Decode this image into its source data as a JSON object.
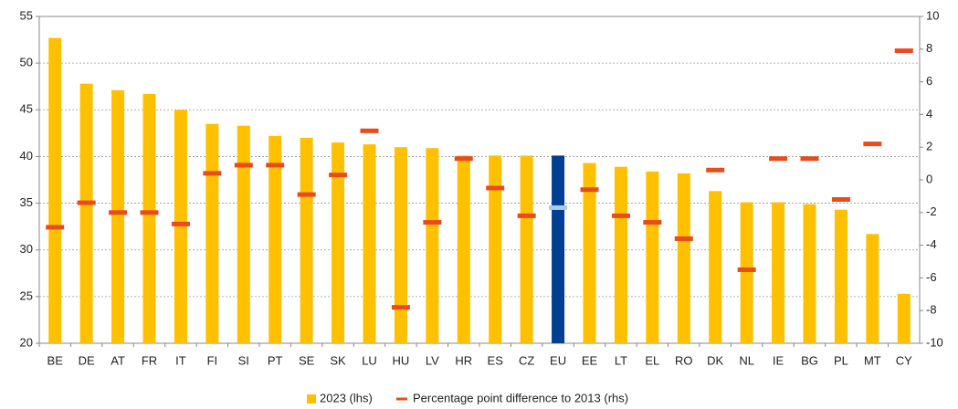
{
  "chart_data": {
    "type": "bar",
    "categories": [
      "BE",
      "DE",
      "AT",
      "FR",
      "IT",
      "FI",
      "SI",
      "PT",
      "SE",
      "SK",
      "LU",
      "HU",
      "LV",
      "HR",
      "ES",
      "CZ",
      "EU",
      "EE",
      "LT",
      "EL",
      "RO",
      "DK",
      "NL",
      "IE",
      "BG",
      "PL",
      "MT",
      "CY"
    ],
    "series": [
      {
        "name": "2023 (lhs)",
        "color": "#ffc000",
        "colors": [
          "#ffc000",
          "#ffc000",
          "#ffc000",
          "#ffc000",
          "#ffc000",
          "#ffc000",
          "#ffc000",
          "#ffc000",
          "#ffc000",
          "#ffc000",
          "#ffc000",
          "#ffc000",
          "#ffc000",
          "#ffc000",
          "#ffc000",
          "#ffc000",
          "#003f91",
          "#ffc000",
          "#ffc000",
          "#ffc000",
          "#ffc000",
          "#ffc000",
          "#ffc000",
          "#ffc000",
          "#ffc000",
          "#ffc000",
          "#ffc000",
          "#ffc000"
        ],
        "values": [
          52.7,
          47.8,
          47.1,
          46.7,
          45.0,
          43.5,
          43.3,
          42.2,
          42.0,
          41.5,
          41.3,
          41.0,
          40.9,
          40.1,
          40.1,
          40.1,
          40.1,
          39.3,
          38.9,
          38.4,
          38.2,
          36.3,
          35.1,
          35.1,
          34.9,
          34.3,
          31.7,
          25.3
        ]
      },
      {
        "name": "Percentage point difference to 2013 (rhs)",
        "color": "#ea4b1c",
        "axis": "y2",
        "marker": "dash",
        "colors": [
          "#ea4b1c",
          "#ea4b1c",
          "#ea4b1c",
          "#ea4b1c",
          "#ea4b1c",
          "#ea4b1c",
          "#ea4b1c",
          "#ea4b1c",
          "#ea4b1c",
          "#ea4b1c",
          "#ea4b1c",
          "#ea4b1c",
          "#ea4b1c",
          "#ea4b1c",
          "#ea4b1c",
          "#ea4b1c",
          "#a9cbef",
          "#ea4b1c",
          "#ea4b1c",
          "#ea4b1c",
          "#ea4b1c",
          "#ea4b1c",
          "#ea4b1c",
          "#ea4b1c",
          "#ea4b1c",
          "#ea4b1c",
          "#ea4b1c",
          "#ea4b1c"
        ],
        "values": [
          -2.9,
          -1.4,
          -2.0,
          -2.0,
          -2.7,
          0.4,
          0.9,
          0.9,
          -0.9,
          0.3,
          3.0,
          -7.8,
          -2.6,
          1.3,
          -0.5,
          -2.2,
          -1.7,
          -0.6,
          -2.2,
          -2.6,
          -3.6,
          0.6,
          -5.5,
          1.3,
          1.3,
          -1.2,
          2.2,
          7.9
        ]
      }
    ],
    "ylim": [
      20,
      55
    ],
    "yticks": [
      20,
      25,
      30,
      35,
      40,
      45,
      50,
      55
    ],
    "y2lim": [
      -10,
      10
    ],
    "y2ticks": [
      -10,
      -8,
      -6,
      -4,
      -2,
      0,
      2,
      4,
      6,
      8,
      10
    ],
    "grid": true,
    "legend": "bottom"
  }
}
